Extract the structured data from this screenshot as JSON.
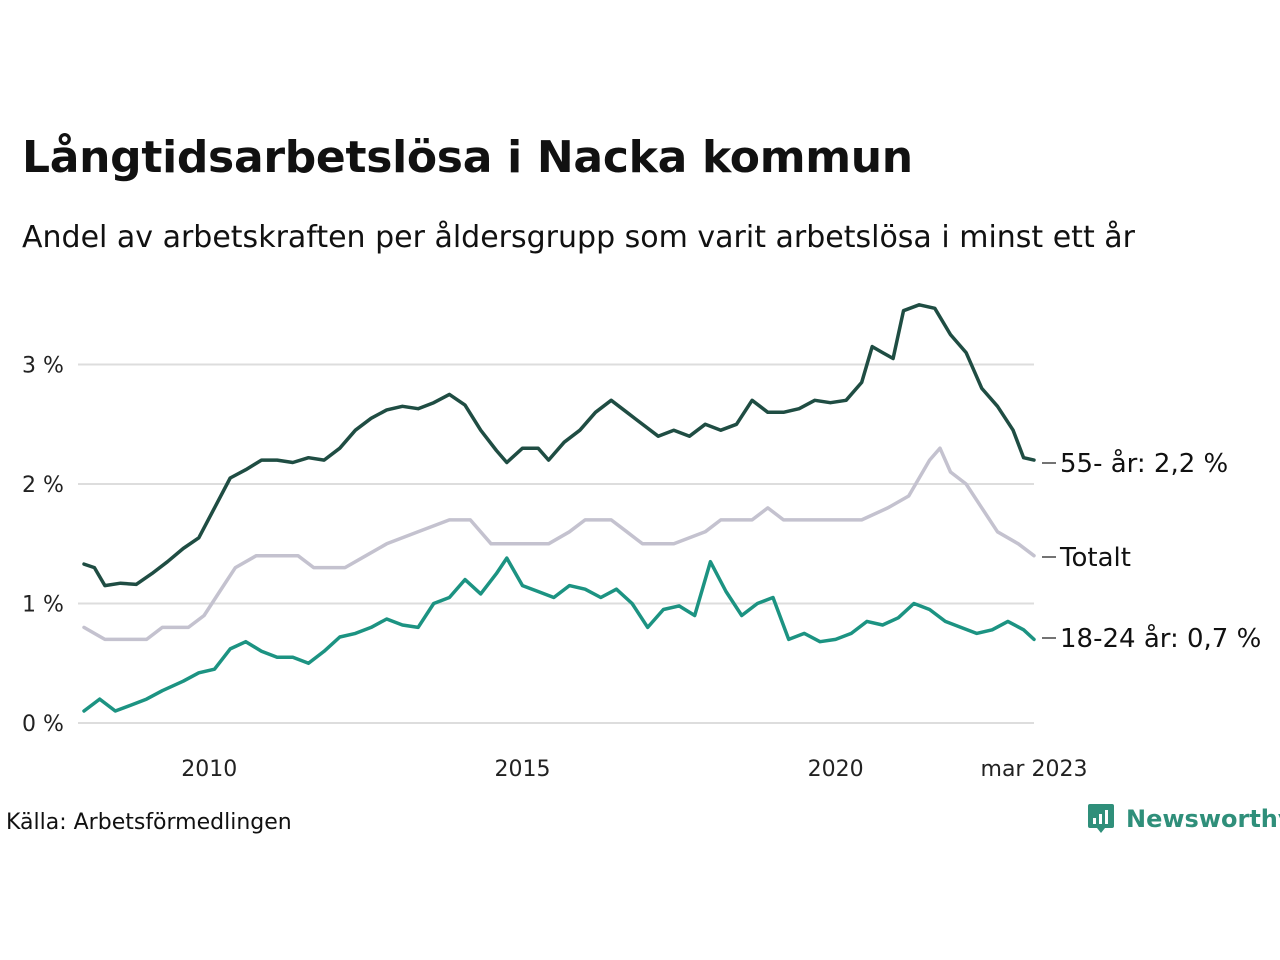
{
  "header": {
    "title": "Långtidsarbetslösa i Nacka kommun",
    "subtitle": "Andel av arbetskraften per åldersgrupp som varit arbetslösa i minst ett år"
  },
  "footer": {
    "source": "Källa: Arbetsförmedlingen",
    "brand": "Newsworthy"
  },
  "colors": {
    "older": "#1f4d43",
    "total": "#c4c2cf",
    "young": "#1c9382",
    "grid": "#dddddd",
    "brand": "#2f8f7a"
  },
  "icons": {
    "brand_logo": "bar-chart-speech-bubble-icon"
  },
  "chart_data": {
    "type": "line",
    "x_start": "2008-01",
    "x_end": "2023-03",
    "x_ticks": [
      {
        "x": "2010-01",
        "label": "2010"
      },
      {
        "x": "2015-01",
        "label": "2015"
      },
      {
        "x": "2020-01",
        "label": "2020"
      },
      {
        "x": "2023-03",
        "label": "mar 2023"
      }
    ],
    "y_ticks": [
      {
        "y": 0,
        "label": "0 %"
      },
      {
        "y": 1,
        "label": "1 %"
      },
      {
        "y": 2,
        "label": "2 %"
      },
      {
        "y": 3,
        "label": "3 %"
      }
    ],
    "ylim": [
      0,
      3.5
    ],
    "series": [
      {
        "key": "older",
        "end_label": "55- år: 2,2 %",
        "points": [
          [
            "2008-01",
            1.33
          ],
          [
            "2008-03",
            1.3
          ],
          [
            "2008-05",
            1.15
          ],
          [
            "2008-08",
            1.17
          ],
          [
            "2008-11",
            1.16
          ],
          [
            "2009-02",
            1.25
          ],
          [
            "2009-05",
            1.35
          ],
          [
            "2009-08",
            1.46
          ],
          [
            "2009-11",
            1.55
          ],
          [
            "2010-02",
            1.8
          ],
          [
            "2010-05",
            2.05
          ],
          [
            "2010-08",
            2.12
          ],
          [
            "2010-11",
            2.2
          ],
          [
            "2011-02",
            2.2
          ],
          [
            "2011-05",
            2.18
          ],
          [
            "2011-08",
            2.22
          ],
          [
            "2011-11",
            2.2
          ],
          [
            "2012-02",
            2.3
          ],
          [
            "2012-05",
            2.45
          ],
          [
            "2012-08",
            2.55
          ],
          [
            "2012-11",
            2.62
          ],
          [
            "2013-02",
            2.65
          ],
          [
            "2013-05",
            2.63
          ],
          [
            "2013-08",
            2.68
          ],
          [
            "2013-11",
            2.75
          ],
          [
            "2014-02",
            2.66
          ],
          [
            "2014-05",
            2.45
          ],
          [
            "2014-08",
            2.28
          ],
          [
            "2014-10",
            2.18
          ],
          [
            "2015-01",
            2.3
          ],
          [
            "2015-04",
            2.3
          ],
          [
            "2015-06",
            2.2
          ],
          [
            "2015-09",
            2.35
          ],
          [
            "2015-12",
            2.45
          ],
          [
            "2016-03",
            2.6
          ],
          [
            "2016-06",
            2.7
          ],
          [
            "2016-09",
            2.6
          ],
          [
            "2016-12",
            2.5
          ],
          [
            "2017-03",
            2.4
          ],
          [
            "2017-06",
            2.45
          ],
          [
            "2017-09",
            2.4
          ],
          [
            "2017-12",
            2.5
          ],
          [
            "2018-03",
            2.45
          ],
          [
            "2018-06",
            2.5
          ],
          [
            "2018-09",
            2.7
          ],
          [
            "2018-12",
            2.6
          ],
          [
            "2019-03",
            2.6
          ],
          [
            "2019-06",
            2.63
          ],
          [
            "2019-09",
            2.7
          ],
          [
            "2019-12",
            2.68
          ],
          [
            "2020-03",
            2.7
          ],
          [
            "2020-06",
            2.85
          ],
          [
            "2020-08",
            3.15
          ],
          [
            "2020-10",
            3.1
          ],
          [
            "2020-12",
            3.05
          ],
          [
            "2021-02",
            3.45
          ],
          [
            "2021-05",
            3.5
          ],
          [
            "2021-08",
            3.47
          ],
          [
            "2021-11",
            3.25
          ],
          [
            "2022-02",
            3.1
          ],
          [
            "2022-05",
            2.8
          ],
          [
            "2022-08",
            2.65
          ],
          [
            "2022-11",
            2.45
          ],
          [
            "2023-01",
            2.22
          ],
          [
            "2023-03",
            2.2
          ]
        ]
      },
      {
        "key": "total",
        "end_label": "Totalt",
        "points": [
          [
            "2008-01",
            0.8
          ],
          [
            "2008-05",
            0.7
          ],
          [
            "2009-01",
            0.7
          ],
          [
            "2009-04",
            0.8
          ],
          [
            "2009-09",
            0.8
          ],
          [
            "2009-12",
            0.9
          ],
          [
            "2010-03",
            1.1
          ],
          [
            "2010-06",
            1.3
          ],
          [
            "2010-10",
            1.4
          ],
          [
            "2011-06",
            1.4
          ],
          [
            "2011-09",
            1.3
          ],
          [
            "2012-03",
            1.3
          ],
          [
            "2012-07",
            1.4
          ],
          [
            "2012-11",
            1.5
          ],
          [
            "2013-05",
            1.6
          ],
          [
            "2013-11",
            1.7
          ],
          [
            "2014-03",
            1.7
          ],
          [
            "2014-07",
            1.5
          ],
          [
            "2015-06",
            1.5
          ],
          [
            "2015-10",
            1.6
          ],
          [
            "2016-01",
            1.7
          ],
          [
            "2016-06",
            1.7
          ],
          [
            "2016-09",
            1.6
          ],
          [
            "2016-12",
            1.5
          ],
          [
            "2017-06",
            1.5
          ],
          [
            "2017-12",
            1.6
          ],
          [
            "2018-03",
            1.7
          ],
          [
            "2018-09",
            1.7
          ],
          [
            "2018-12",
            1.8
          ],
          [
            "2019-03",
            1.7
          ],
          [
            "2019-09",
            1.7
          ],
          [
            "2020-03",
            1.7
          ],
          [
            "2020-06",
            1.7
          ],
          [
            "2020-11",
            1.8
          ],
          [
            "2021-03",
            1.9
          ],
          [
            "2021-07",
            2.2
          ],
          [
            "2021-09",
            2.3
          ],
          [
            "2021-11",
            2.1
          ],
          [
            "2022-02",
            2.0
          ],
          [
            "2022-05",
            1.8
          ],
          [
            "2022-08",
            1.6
          ],
          [
            "2022-12",
            1.5
          ],
          [
            "2023-03",
            1.4
          ]
        ]
      },
      {
        "key": "young",
        "end_label": "18-24 år: 0,7 %",
        "points": [
          [
            "2008-01",
            0.1
          ],
          [
            "2008-04",
            0.2
          ],
          [
            "2008-07",
            0.1
          ],
          [
            "2008-10",
            0.15
          ],
          [
            "2009-01",
            0.2
          ],
          [
            "2009-04",
            0.27
          ],
          [
            "2009-08",
            0.35
          ],
          [
            "2009-11",
            0.42
          ],
          [
            "2010-02",
            0.45
          ],
          [
            "2010-05",
            0.62
          ],
          [
            "2010-08",
            0.68
          ],
          [
            "2010-11",
            0.6
          ],
          [
            "2011-02",
            0.55
          ],
          [
            "2011-05",
            0.55
          ],
          [
            "2011-08",
            0.5
          ],
          [
            "2011-11",
            0.6
          ],
          [
            "2012-02",
            0.72
          ],
          [
            "2012-05",
            0.75
          ],
          [
            "2012-08",
            0.8
          ],
          [
            "2012-11",
            0.87
          ],
          [
            "2013-02",
            0.82
          ],
          [
            "2013-05",
            0.8
          ],
          [
            "2013-08",
            1.0
          ],
          [
            "2013-11",
            1.05
          ],
          [
            "2014-02",
            1.2
          ],
          [
            "2014-05",
            1.08
          ],
          [
            "2014-08",
            1.25
          ],
          [
            "2014-10",
            1.38
          ],
          [
            "2015-01",
            1.15
          ],
          [
            "2015-04",
            1.1
          ],
          [
            "2015-07",
            1.05
          ],
          [
            "2015-10",
            1.15
          ],
          [
            "2016-01",
            1.12
          ],
          [
            "2016-04",
            1.05
          ],
          [
            "2016-07",
            1.12
          ],
          [
            "2016-10",
            1.0
          ],
          [
            "2017-01",
            0.8
          ],
          [
            "2017-04",
            0.95
          ],
          [
            "2017-07",
            0.98
          ],
          [
            "2017-10",
            0.9
          ],
          [
            "2018-01",
            1.35
          ],
          [
            "2018-04",
            1.1
          ],
          [
            "2018-07",
            0.9
          ],
          [
            "2018-10",
            1.0
          ],
          [
            "2019-01",
            1.05
          ],
          [
            "2019-04",
            0.7
          ],
          [
            "2019-07",
            0.75
          ],
          [
            "2019-10",
            0.68
          ],
          [
            "2020-01",
            0.7
          ],
          [
            "2020-04",
            0.75
          ],
          [
            "2020-07",
            0.85
          ],
          [
            "2020-10",
            0.82
          ],
          [
            "2021-01",
            0.88
          ],
          [
            "2021-04",
            1.0
          ],
          [
            "2021-07",
            0.95
          ],
          [
            "2021-10",
            0.85
          ],
          [
            "2022-01",
            0.8
          ],
          [
            "2022-04",
            0.75
          ],
          [
            "2022-07",
            0.78
          ],
          [
            "2022-10",
            0.85
          ],
          [
            "2023-01",
            0.78
          ],
          [
            "2023-03",
            0.7
          ]
        ]
      }
    ]
  }
}
